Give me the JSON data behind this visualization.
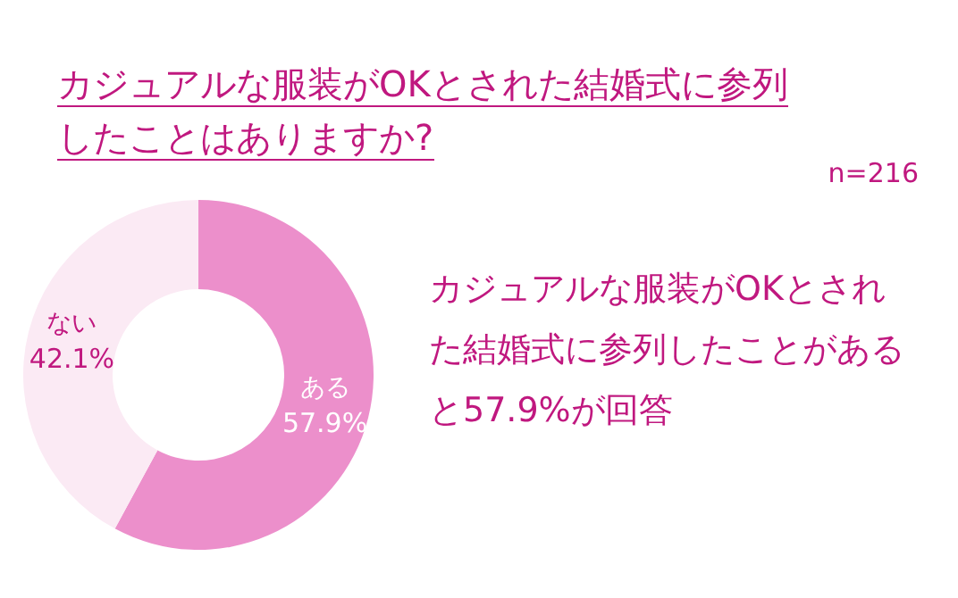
{
  "chart_data": {
    "type": "donut",
    "title": "カジュアルな服装がOKとされた結婚式に参列したことはありますか?",
    "categories": [
      "ある",
      "ない"
    ],
    "values": [
      57.9,
      42.1
    ],
    "colors": [
      "#ec8fcb",
      "#fbeaf4"
    ],
    "value_labels": [
      "57.9%",
      "42.1%"
    ],
    "annotations": [
      "n=216",
      "カジュアルな服装がOKとされた結婚式に参列したことがあると57.9%が回答"
    ]
  }
}
